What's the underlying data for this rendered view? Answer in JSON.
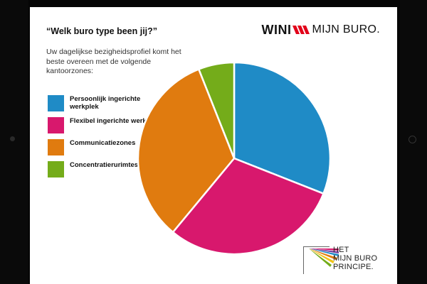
{
  "question": "“Welk buro type been jij?”",
  "intro": "Uw dagelijkse bezigheidsprofiel komt het beste overeen met de volgende kantoorzones:",
  "logo": {
    "brand": "WINI",
    "product": "MIJN BURO."
  },
  "footer": {
    "line1": "HET",
    "line2": "MIJN BURO",
    "line3": "PRINCIPE."
  },
  "colors": {
    "blue": "#1f8bc6",
    "magenta": "#d8186d",
    "orange": "#e07b0f",
    "green": "#74ac1a",
    "logo_red": "#e2001a"
  },
  "chart_data": {
    "type": "pie",
    "title": "",
    "categories": [
      "Persoonlijk ingerichte werkplek",
      "Flexibel ingerichte werkplek",
      "Communicatiezones",
      "Concentratierurimtes"
    ],
    "values": [
      31,
      30,
      33,
      6
    ],
    "colors": [
      "#1f8bc6",
      "#d8186d",
      "#e07b0f",
      "#74ac1a"
    ],
    "legend": "left"
  }
}
